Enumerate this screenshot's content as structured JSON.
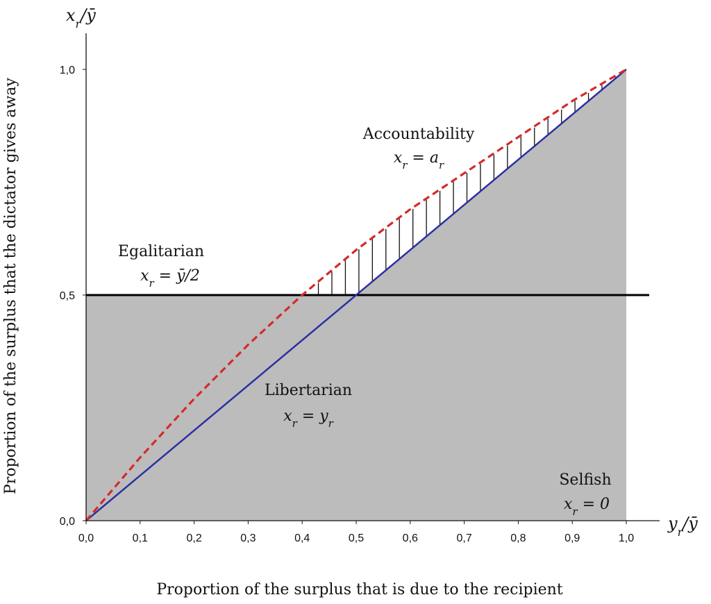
{
  "chart_data": {
    "type": "line",
    "x_axis_end_label": "y_r/ȳ",
    "y_axis_end_label": "x_r/ȳ",
    "xlabel": "Proportion of the surplus that is due to the recipient",
    "ylabel": "Proportion of the surplus that the dictator gives away",
    "x_ticks": [
      "0,0",
      "0,1",
      "0,2",
      "0,3",
      "0,4",
      "0,5",
      "0,6",
      "0,7",
      "0,8",
      "0,9",
      "1,0"
    ],
    "y_ticks": [
      "0,0",
      "0,5",
      "1,0"
    ],
    "xlim": [
      0,
      1
    ],
    "ylim": [
      0,
      1
    ],
    "grid": false,
    "shaded_region": "below the higher of the egalitarian and libertarian lines",
    "hatched_region": "between accountability curve and libertarian line, above egalitarian line",
    "series": [
      {
        "name": "Libertarian",
        "formula": "x_r = y_r",
        "color": "#2b2fa3",
        "style": "solid",
        "x": [
          0,
          1
        ],
        "y": [
          0,
          1
        ]
      },
      {
        "name": "Egalitarian",
        "formula": "x_r = ȳ/2",
        "color": "#000000",
        "style": "solid",
        "x": [
          0,
          1.05
        ],
        "y": [
          0.5,
          0.5
        ]
      },
      {
        "name": "Accountability",
        "formula": "x_r = a_r",
        "color": "#d42a2a",
        "style": "dashed",
        "x": [
          0,
          0.1,
          0.2,
          0.3,
          0.4,
          0.5,
          0.6,
          0.7,
          0.8,
          0.9,
          1.0
        ],
        "y": [
          0,
          0.14,
          0.27,
          0.39,
          0.5,
          0.6,
          0.69,
          0.77,
          0.85,
          0.93,
          1.0
        ]
      }
    ],
    "annotations": [
      {
        "name": "Accountability",
        "formula": "x_r = a_r",
        "x": 0.67,
        "y": 0.83
      },
      {
        "name": "Egalitarian",
        "formula": "x_r = ȳ/2",
        "x": 0.1,
        "y": 0.58
      },
      {
        "name": "Libertarian",
        "formula": "x_r = y_r",
        "x": 0.45,
        "y": 0.46
      },
      {
        "name": "Selfish",
        "formula": "x_r = 0",
        "x": 0.98,
        "y": 0.16
      }
    ]
  }
}
